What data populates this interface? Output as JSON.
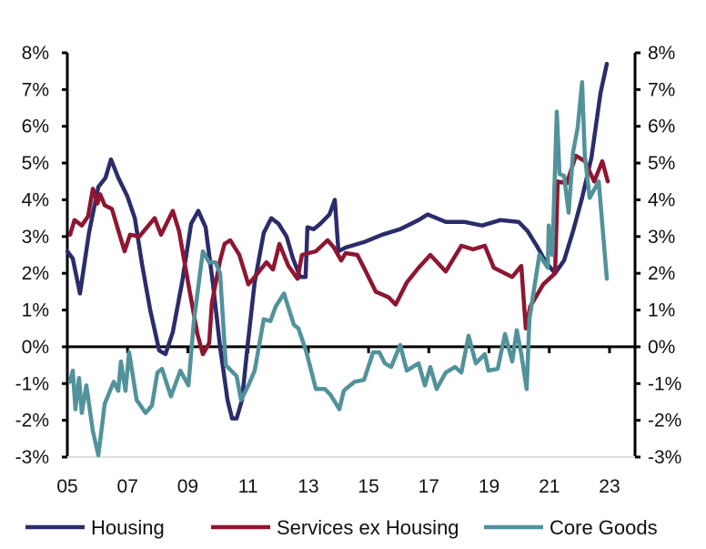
{
  "chart_data": {
    "type": "line",
    "title": "",
    "xlabel": "",
    "ylabel": "",
    "ylim": [
      -3,
      8
    ],
    "xlim": [
      2005,
      2023.9
    ],
    "grid": false,
    "legend_position": "bottom",
    "y_ticks": [
      "8%",
      "7%",
      "6%",
      "5%",
      "4%",
      "3%",
      "2%",
      "1%",
      "0%",
      "-1%",
      "-2%",
      "-3%"
    ],
    "y_tick_values": [
      8,
      7,
      6,
      5,
      4,
      3,
      2,
      1,
      0,
      -1,
      -2,
      -3
    ],
    "x_ticks": [
      "05",
      "07",
      "09",
      "11",
      "13",
      "15",
      "17",
      "19",
      "21",
      "23"
    ],
    "x_tick_values": [
      2005,
      2007,
      2009,
      2011,
      2013,
      2015,
      2017,
      2019,
      2021,
      2023
    ],
    "colors": {
      "Housing": "#2b2c6b",
      "Services ex Housing": "#8e1630",
      "Core Goods": "#52929a"
    },
    "series": [
      {
        "name": "Housing",
        "points": [
          [
            2005.0,
            2.6
          ],
          [
            2005.18,
            2.4
          ],
          [
            2005.42,
            1.45
          ],
          [
            2005.72,
            3.1
          ],
          [
            2006.03,
            4.35
          ],
          [
            2006.27,
            4.6
          ],
          [
            2006.45,
            5.1
          ],
          [
            2006.69,
            4.6
          ],
          [
            2006.99,
            4.1
          ],
          [
            2007.24,
            3.5
          ],
          [
            2007.48,
            2.25
          ],
          [
            2007.75,
            1.0
          ],
          [
            2008.05,
            -0.1
          ],
          [
            2008.26,
            -0.2
          ],
          [
            2008.5,
            0.4
          ],
          [
            2008.81,
            1.75
          ],
          [
            2009.11,
            3.35
          ],
          [
            2009.35,
            3.7
          ],
          [
            2009.59,
            3.25
          ],
          [
            2009.83,
            1.75
          ],
          [
            2010.07,
            0.0
          ],
          [
            2010.32,
            -1.45
          ],
          [
            2010.47,
            -1.95
          ],
          [
            2010.62,
            -1.95
          ],
          [
            2010.8,
            -1.45
          ],
          [
            2010.98,
            0.0
          ],
          [
            2011.22,
            1.75
          ],
          [
            2011.52,
            3.1
          ],
          [
            2011.77,
            3.5
          ],
          [
            2012.01,
            3.35
          ],
          [
            2012.28,
            3.0
          ],
          [
            2012.49,
            2.4
          ],
          [
            2012.73,
            1.9
          ],
          [
            2012.91,
            1.9
          ],
          [
            2012.97,
            3.25
          ],
          [
            2013.18,
            3.2
          ],
          [
            2013.4,
            3.35
          ],
          [
            2013.7,
            3.6
          ],
          [
            2013.88,
            4.0
          ],
          [
            2014.0,
            2.6
          ],
          [
            2014.24,
            2.7
          ],
          [
            2014.85,
            2.85
          ],
          [
            2015.45,
            3.05
          ],
          [
            2016.05,
            3.2
          ],
          [
            2016.66,
            3.45
          ],
          [
            2016.96,
            3.6
          ],
          [
            2017.56,
            3.4
          ],
          [
            2018.17,
            3.4
          ],
          [
            2018.77,
            3.3
          ],
          [
            2019.38,
            3.45
          ],
          [
            2019.98,
            3.4
          ],
          [
            2020.28,
            3.15
          ],
          [
            2020.58,
            2.75
          ],
          [
            2020.89,
            2.3
          ],
          [
            2021.19,
            2.0
          ],
          [
            2021.49,
            2.35
          ],
          [
            2021.79,
            3.15
          ],
          [
            2022.09,
            4.05
          ],
          [
            2022.4,
            5.15
          ],
          [
            2022.7,
            6.9
          ],
          [
            2022.91,
            7.7
          ]
        ]
      },
      {
        "name": "Services ex Housing",
        "points": [
          [
            2005.09,
            3.05
          ],
          [
            2005.24,
            3.45
          ],
          [
            2005.48,
            3.3
          ],
          [
            2005.69,
            3.55
          ],
          [
            2005.85,
            4.3
          ],
          [
            2006.0,
            3.9
          ],
          [
            2006.09,
            4.15
          ],
          [
            2006.24,
            3.85
          ],
          [
            2006.48,
            3.75
          ],
          [
            2006.9,
            2.6
          ],
          [
            2007.08,
            3.05
          ],
          [
            2007.39,
            3.0
          ],
          [
            2007.9,
            3.5
          ],
          [
            2008.11,
            3.05
          ],
          [
            2008.5,
            3.7
          ],
          [
            2008.71,
            3.15
          ],
          [
            2009.02,
            1.7
          ],
          [
            2009.32,
            0.35
          ],
          [
            2009.5,
            -0.2
          ],
          [
            2009.71,
            0.1
          ],
          [
            2009.8,
            1.2
          ],
          [
            2010.07,
            2.35
          ],
          [
            2010.22,
            2.8
          ],
          [
            2010.41,
            2.9
          ],
          [
            2010.71,
            2.5
          ],
          [
            2011.01,
            1.7
          ],
          [
            2011.22,
            1.9
          ],
          [
            2011.61,
            2.3
          ],
          [
            2011.83,
            2.1
          ],
          [
            2012.04,
            2.8
          ],
          [
            2012.34,
            2.2
          ],
          [
            2012.64,
            1.85
          ],
          [
            2012.79,
            2.5
          ],
          [
            2013.25,
            2.6
          ],
          [
            2013.64,
            2.9
          ],
          [
            2013.85,
            2.7
          ],
          [
            2014.09,
            2.35
          ],
          [
            2014.24,
            2.55
          ],
          [
            2014.63,
            2.5
          ],
          [
            2014.94,
            2.0
          ],
          [
            2015.24,
            1.5
          ],
          [
            2015.66,
            1.35
          ],
          [
            2015.9,
            1.15
          ],
          [
            2016.27,
            1.75
          ],
          [
            2016.66,
            2.15
          ],
          [
            2017.05,
            2.5
          ],
          [
            2017.56,
            2.05
          ],
          [
            2018.08,
            2.75
          ],
          [
            2018.47,
            2.65
          ],
          [
            2018.86,
            2.75
          ],
          [
            2019.16,
            2.15
          ],
          [
            2019.77,
            1.9
          ],
          [
            2020.07,
            2.2
          ],
          [
            2020.22,
            0.5
          ],
          [
            2020.37,
            1.1
          ],
          [
            2020.8,
            1.7
          ],
          [
            2021.19,
            2.0
          ],
          [
            2021.28,
            4.5
          ],
          [
            2021.58,
            4.45
          ],
          [
            2021.88,
            5.2
          ],
          [
            2022.18,
            5.05
          ],
          [
            2022.49,
            4.5
          ],
          [
            2022.76,
            5.05
          ],
          [
            2022.94,
            4.5
          ]
        ]
      },
      {
        "name": "Core Goods",
        "points": [
          [
            2005.09,
            -0.95
          ],
          [
            2005.18,
            -0.65
          ],
          [
            2005.27,
            -1.7
          ],
          [
            2005.39,
            -0.85
          ],
          [
            2005.48,
            -1.8
          ],
          [
            2005.63,
            -1.05
          ],
          [
            2005.85,
            -2.3
          ],
          [
            2006.03,
            -2.95
          ],
          [
            2006.24,
            -1.55
          ],
          [
            2006.54,
            -0.95
          ],
          [
            2006.69,
            -1.2
          ],
          [
            2006.78,
            -0.4
          ],
          [
            2006.93,
            -1.2
          ],
          [
            2007.05,
            -0.15
          ],
          [
            2007.3,
            -1.45
          ],
          [
            2007.6,
            -1.8
          ],
          [
            2007.81,
            -1.6
          ],
          [
            2007.99,
            -0.7
          ],
          [
            2008.14,
            -0.6
          ],
          [
            2008.44,
            -1.35
          ],
          [
            2008.75,
            -0.65
          ],
          [
            2009.02,
            -1.05
          ],
          [
            2009.2,
            0.7
          ],
          [
            2009.5,
            2.6
          ],
          [
            2009.71,
            2.3
          ],
          [
            2009.92,
            2.3
          ],
          [
            2010.07,
            2.0
          ],
          [
            2010.26,
            -0.5
          ],
          [
            2010.62,
            -0.8
          ],
          [
            2010.77,
            -1.45
          ],
          [
            2011.01,
            -1.05
          ],
          [
            2011.22,
            -0.65
          ],
          [
            2011.52,
            0.75
          ],
          [
            2011.74,
            0.7
          ],
          [
            2011.92,
            1.1
          ],
          [
            2012.19,
            1.45
          ],
          [
            2012.52,
            0.6
          ],
          [
            2012.67,
            0.5
          ],
          [
            2012.94,
            -0.15
          ],
          [
            2013.25,
            -1.15
          ],
          [
            2013.55,
            -1.15
          ],
          [
            2013.73,
            -1.3
          ],
          [
            2014.03,
            -1.7
          ],
          [
            2014.18,
            -1.2
          ],
          [
            2014.24,
            -1.15
          ],
          [
            2014.54,
            -0.95
          ],
          [
            2014.85,
            -0.9
          ],
          [
            2015.15,
            -0.15
          ],
          [
            2015.36,
            -0.15
          ],
          [
            2015.54,
            -0.45
          ],
          [
            2015.75,
            -0.55
          ],
          [
            2016.05,
            0.05
          ],
          [
            2016.27,
            -0.65
          ],
          [
            2016.66,
            -0.45
          ],
          [
            2016.87,
            -1.05
          ],
          [
            2017.05,
            -0.55
          ],
          [
            2017.26,
            -1.15
          ],
          [
            2017.56,
            -0.7
          ],
          [
            2017.87,
            -0.55
          ],
          [
            2018.08,
            -0.7
          ],
          [
            2018.32,
            0.3
          ],
          [
            2018.56,
            -0.45
          ],
          [
            2018.86,
            -0.2
          ],
          [
            2018.98,
            -0.65
          ],
          [
            2019.29,
            -0.6
          ],
          [
            2019.53,
            0.35
          ],
          [
            2019.77,
            -0.4
          ],
          [
            2019.92,
            0.45
          ],
          [
            2020.07,
            -0.2
          ],
          [
            2020.25,
            -1.15
          ],
          [
            2020.34,
            0.75
          ],
          [
            2020.67,
            2.5
          ],
          [
            2020.95,
            2.15
          ],
          [
            2020.98,
            3.3
          ],
          [
            2021.1,
            2.5
          ],
          [
            2021.25,
            6.4
          ],
          [
            2021.34,
            4.7
          ],
          [
            2021.49,
            4.65
          ],
          [
            2021.64,
            3.65
          ],
          [
            2021.79,
            5.3
          ],
          [
            2021.94,
            5.95
          ],
          [
            2022.09,
            7.2
          ],
          [
            2022.18,
            5.2
          ],
          [
            2022.34,
            4.05
          ],
          [
            2022.64,
            4.5
          ],
          [
            2022.91,
            1.85
          ]
        ]
      }
    ]
  }
}
